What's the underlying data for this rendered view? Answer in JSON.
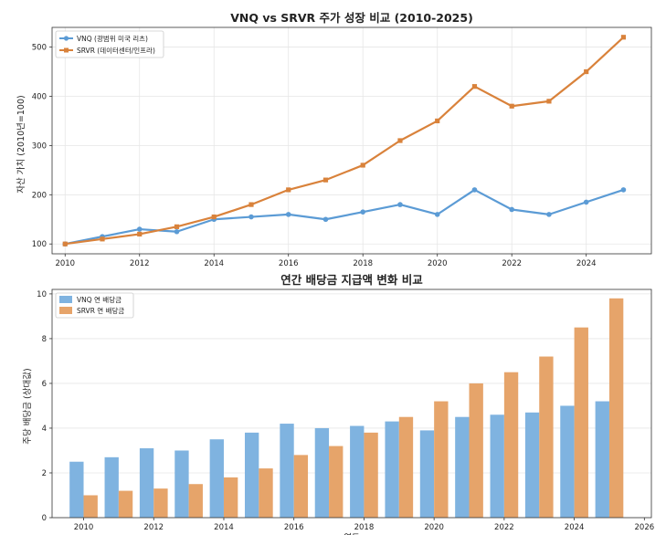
{
  "chart_data": [
    {
      "type": "line",
      "title": "VNQ vs SRVR 주가 성장 비교 (2010-2025)",
      "xlabel": "",
      "ylabel": "자산 가치 (2010년=100)",
      "xlim": [
        2009.65,
        2025.75
      ],
      "ylim": [
        80,
        540
      ],
      "xticks": [
        2010,
        2012,
        2014,
        2016,
        2018,
        2020,
        2022,
        2024
      ],
      "yticks": [
        100,
        200,
        300,
        400,
        500
      ],
      "grid": true,
      "legend_position": "top-left",
      "x": [
        2010,
        2011,
        2012,
        2013,
        2014,
        2015,
        2016,
        2017,
        2018,
        2019,
        2020,
        2021,
        2022,
        2023,
        2024,
        2025
      ],
      "series": [
        {
          "name": "VNQ (광범위 미국 리츠)",
          "color": "#5b9bd5",
          "marker": "circle",
          "values": [
            100,
            115,
            130,
            125,
            150,
            155,
            160,
            150,
            165,
            180,
            160,
            210,
            170,
            160,
            185,
            210
          ]
        },
        {
          "name": "SRVR (데이터센터/인프라)",
          "color": "#d9823b",
          "marker": "square",
          "values": [
            100,
            110,
            120,
            135,
            155,
            180,
            210,
            230,
            260,
            310,
            350,
            420,
            380,
            390,
            450,
            520
          ]
        }
      ]
    },
    {
      "type": "bar",
      "title": "연간 배당금 지급액 변화 비교",
      "xlabel": "연도",
      "ylabel": "주당 배당금 (상대값)",
      "xlim": [
        2009.1,
        2026.2
      ],
      "ylim": [
        0,
        10.2
      ],
      "xticks": [
        2010,
        2012,
        2014,
        2016,
        2018,
        2020,
        2022,
        2024,
        2026
      ],
      "yticks": [
        0,
        2,
        4,
        6,
        8,
        10
      ],
      "grid": true,
      "legend_position": "top-left",
      "x": [
        2010,
        2011,
        2012,
        2013,
        2014,
        2015,
        2016,
        2017,
        2018,
        2019,
        2020,
        2021,
        2022,
        2023,
        2024,
        2025
      ],
      "series": [
        {
          "name": "VNQ 연 배당금",
          "color": "#7fb3e0",
          "values": [
            2.5,
            2.7,
            3.1,
            3.0,
            3.5,
            3.8,
            4.2,
            4.0,
            4.1,
            4.3,
            3.9,
            4.5,
            4.6,
            4.7,
            5.0,
            5.2
          ]
        },
        {
          "name": "SRVR 연 배당금",
          "color": "#e6a46a",
          "values": [
            1.0,
            1.2,
            1.3,
            1.5,
            1.8,
            2.2,
            2.8,
            3.2,
            3.8,
            4.5,
            5.2,
            6.0,
            6.5,
            7.2,
            8.5,
            9.8
          ]
        }
      ]
    }
  ]
}
